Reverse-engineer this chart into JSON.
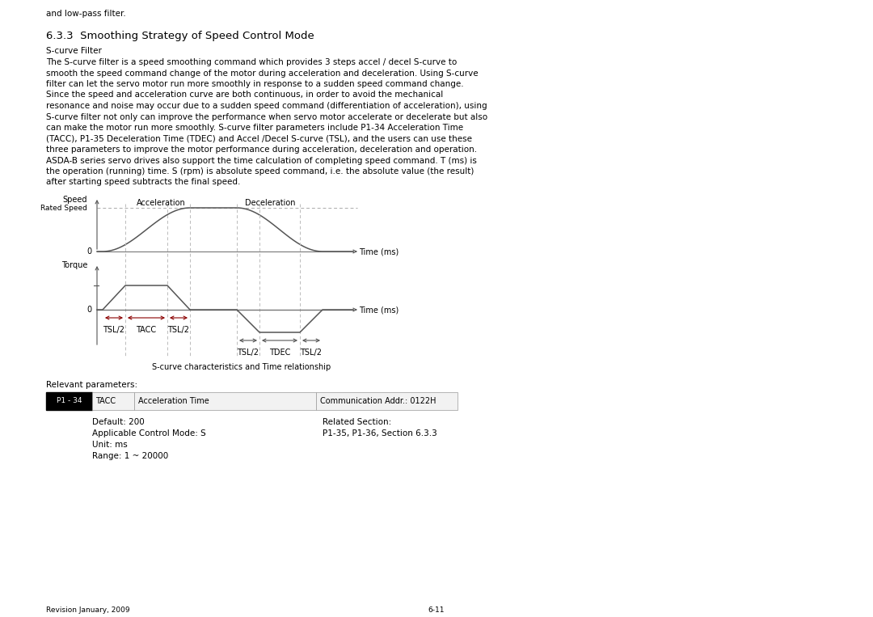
{
  "title_section": "6.3.3  Smoothing Strategy of Speed Control Mode",
  "subtitle": "S-curve Filter",
  "body_text": [
    "The S-curve filter is a speed smoothing command which provides 3 steps accel / decel S-curve to",
    "smooth the speed command change of the motor during acceleration and deceleration. Using S-curve",
    "filter can let the servo motor run more smoothly in response to a sudden speed command change.",
    "Since the speed and acceleration curve are both continuous, in order to avoid the mechanical",
    "resonance and noise may occur due to a sudden speed command (differentiation of acceleration), using",
    "S-curve filter not only can improve the performance when servo motor accelerate or decelerate but also",
    "can make the motor run more smoothly. S-curve filter parameters include P1-34 Acceleration Time",
    "(TACC), P1-35 Deceleration Time (TDEC) and Accel /Decel S-curve (TSL), and the users can use these",
    "three parameters to improve the motor performance during acceleration, deceleration and operation.",
    "ASDA-B series servo drives also support the time calculation of completing speed command. T (ms) is",
    "the operation (running) time. S (rpm) is absolute speed command, i.e. the absolute value (the result)",
    "after starting speed subtracts the final speed."
  ],
  "header_text": "and low-pass filter.",
  "diagram_caption": "S-curve characteristics and Time relationship",
  "param_label": "P1 - 34",
  "param_name": "TACC",
  "param_desc": "Acceleration Time",
  "param_addr": "Communication Addr.: 0122H",
  "default_val": "Default: 200",
  "related_section": "Related Section:",
  "applicable_mode": "Applicable Control Mode: S",
  "related_params": "P1-35, P1-36, Section 6.3.3",
  "unit": "Unit: ms",
  "range": "Range: 1 ~ 20000",
  "footer_left": "Revision January, 2009",
  "footer_right": "6-11",
  "bg_color": "#ffffff",
  "text_color": "#000000",
  "line_color": "#808080",
  "dashed_color": "#aaaaaa",
  "arrow_color": "#8B0000",
  "body_fs": 7.5,
  "title_fs": 9.5,
  "small_fs": 7.0,
  "diag_line_color": "#555555",
  "torque_arrow_color": "#8B0000"
}
